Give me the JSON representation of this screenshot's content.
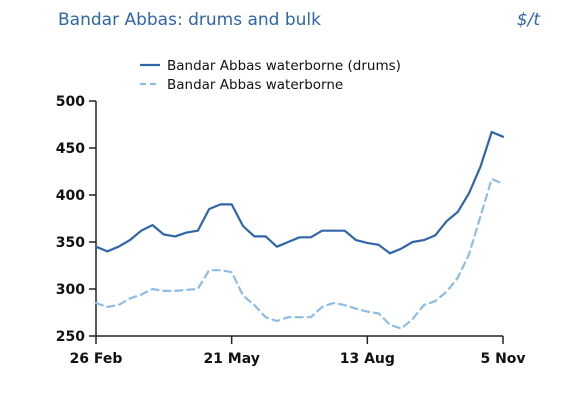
{
  "header": {
    "title": "Bandar Abbas: drums and bulk",
    "unit": "$/t"
  },
  "colors": {
    "drums": "#2e66a8",
    "bulk": "#8dbce6",
    "axis": "#222222",
    "title": "#2e66a8"
  },
  "chart_data": {
    "type": "line",
    "ylim": [
      250,
      500
    ],
    "yticks": [
      250,
      300,
      350,
      400,
      450,
      500
    ],
    "x_index_range": [
      0,
      36
    ],
    "xticks": [
      {
        "label": "26 Feb",
        "index": 0
      },
      {
        "label": "21 May",
        "index": 12
      },
      {
        "label": "13 Aug",
        "index": 24
      },
      {
        "label": "5 Nov",
        "index": 36
      }
    ],
    "grid": false,
    "legend": "top-center",
    "series": [
      {
        "name": "Bandar Abbas waterborne (drums)",
        "style": "solid",
        "values": [
          345,
          340,
          345,
          352,
          362,
          368,
          358,
          356,
          360,
          362,
          385,
          390,
          390,
          367,
          356,
          356,
          345,
          350,
          355,
          355,
          362,
          362,
          362,
          352,
          349,
          347,
          338,
          343,
          350,
          352,
          357,
          372,
          382,
          402,
          430,
          467,
          462
        ]
      },
      {
        "name": "Bandar Abbas waterborne",
        "style": "dashed",
        "values": [
          285,
          281,
          283,
          290,
          294,
          300,
          298,
          298,
          299,
          300,
          320,
          320,
          318,
          293,
          283,
          270,
          266,
          270,
          270,
          270,
          281,
          285,
          283,
          279,
          276,
          274,
          262,
          258,
          268,
          283,
          287,
          297,
          312,
          337,
          377,
          417,
          412
        ]
      }
    ]
  }
}
